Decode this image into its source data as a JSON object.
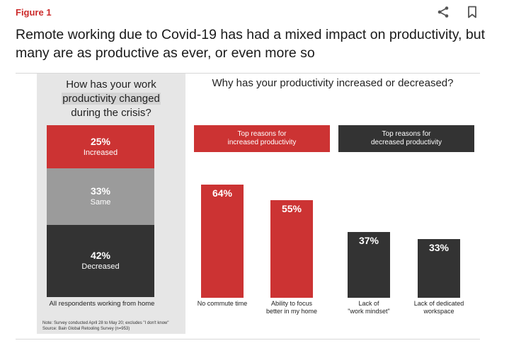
{
  "figure_label": "Figure 1",
  "icons": {
    "share": "share-icon",
    "bookmark": "bookmark-icon"
  },
  "headline": "Remote working due to Covid-19 has had a mixed impact on productivity, but many are as productive as ever, or even more so",
  "colors": {
    "red": "#cc3333",
    "gray": "#9b9b9b",
    "dark": "#333333",
    "panel": "#e6e6e6"
  },
  "chart_data": [
    {
      "type": "bar",
      "stacked": true,
      "title_lines": [
        "How has your work",
        "productivity changed",
        "during the crisis?"
      ],
      "categories": [
        "All respondents working from home"
      ],
      "series": [
        {
          "name": "Increased",
          "values": [
            25
          ],
          "label": "25%"
        },
        {
          "name": "Same",
          "values": [
            33
          ],
          "label": "33%"
        },
        {
          "name": "Decreased",
          "values": [
            42
          ],
          "label": "42%"
        }
      ],
      "note": "Note: Survey conducted April 28 to May 20; excludes \"I don't know\"",
      "source": "Source: Bain Global Retooling Survey (n=953)"
    },
    {
      "type": "bar",
      "title": "Why has your productivity increased or decreased?",
      "groups": [
        {
          "name": "Top reasons for increased productivity",
          "name_lines": [
            "Top reasons for",
            "increased productivity"
          ]
        },
        {
          "name": "Top reasons for decreased productivity",
          "name_lines": [
            "Top reasons for",
            "decreased productivity"
          ]
        }
      ],
      "categories": [
        {
          "lines": [
            "No commute time"
          ],
          "group": 0
        },
        {
          "lines": [
            "Ability to focus",
            "better in my home"
          ],
          "group": 0
        },
        {
          "lines": [
            "Lack of",
            "\"work mindset\""
          ],
          "group": 1
        },
        {
          "lines": [
            "Lack of dedicated",
            "workspace"
          ],
          "group": 1
        }
      ],
      "values": [
        64,
        55,
        37,
        33
      ],
      "value_labels": [
        "64%",
        "55%",
        "37%",
        "33%"
      ],
      "ylim": [
        0,
        100
      ]
    }
  ]
}
